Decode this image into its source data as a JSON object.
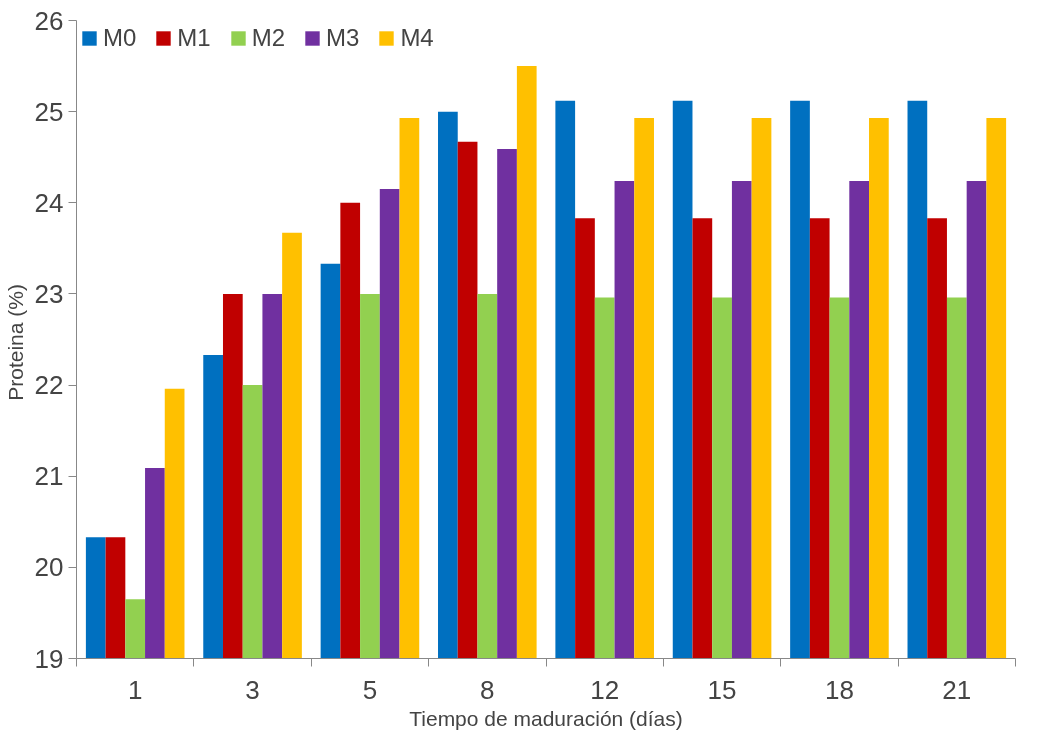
{
  "chart_data": {
    "type": "bar",
    "xlabel": "Tiempo de maduración (días)",
    "ylabel": "Proteina  (%)",
    "categories": [
      "1",
      "3",
      "5",
      "8",
      "12",
      "15",
      "18",
      "21"
    ],
    "series": [
      {
        "name": "M0",
        "color": "#0070c0",
        "values": [
          20.33,
          22.33,
          23.33,
          25.0,
          25.12,
          25.12,
          25.12,
          25.12
        ]
      },
      {
        "name": "M1",
        "color": "#c00000",
        "values": [
          20.33,
          23.0,
          24.0,
          24.67,
          23.83,
          23.83,
          23.83,
          23.83
        ]
      },
      {
        "name": "M2",
        "color": "#92d050",
        "values": [
          19.65,
          22.0,
          23.0,
          23.0,
          22.96,
          22.96,
          22.96,
          22.96
        ]
      },
      {
        "name": "M3",
        "color": "#7030a0",
        "values": [
          21.09,
          23.0,
          24.15,
          24.59,
          24.24,
          24.24,
          24.24,
          24.24
        ]
      },
      {
        "name": "M4",
        "color": "#ffc000",
        "values": [
          21.96,
          23.67,
          24.93,
          25.5,
          24.93,
          24.93,
          24.93,
          24.93
        ]
      }
    ],
    "ylim": [
      19,
      26
    ],
    "yticks": [
      19,
      20,
      21,
      22,
      23,
      24,
      25,
      26
    ],
    "grid": false,
    "legend": "top left"
  }
}
